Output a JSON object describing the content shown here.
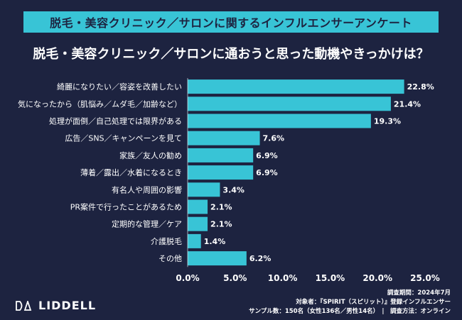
{
  "header": {
    "banner_title": "脱毛・美容クリニック／サロンに関するインフルエンサーアンケート",
    "question": "脱毛・美容クリニック／サロンに通おうと思った動機やきっかけは？"
  },
  "colors": {
    "background": "#1d2340",
    "accent": "#38c4d6",
    "bar": "#38c4d6",
    "text": "#ffffff"
  },
  "chart_data": {
    "type": "bar",
    "orientation": "horizontal",
    "categories": [
      "綺麗になりたい／容姿を改善したい",
      "気になったから（肌悩み／ムダ毛／加齢など）",
      "処理が面倒／自己処理では限界がある",
      "広告／SNS／キャンペーンを見て",
      "家族／友人の勧め",
      "薄着／露出／水着になるとき",
      "有名人や周囲の影響",
      "PR案件で行ったことがあるため",
      "定期的な管理／ケア",
      "介護脱毛",
      "その他"
    ],
    "values": [
      22.8,
      21.4,
      19.3,
      7.6,
      6.9,
      6.9,
      3.4,
      2.1,
      2.1,
      1.4,
      6.2
    ],
    "value_labels": [
      "22.8%",
      "21.4%",
      "19.3%",
      "7.6%",
      "6.9%",
      "6.9%",
      "3.4%",
      "2.1%",
      "2.1%",
      "1.4%",
      "6.2%"
    ],
    "x_ticks": [
      0,
      5,
      10,
      15,
      20,
      25
    ],
    "x_tick_labels": [
      "0.0%",
      "5.0%",
      "10.0%",
      "15.0%",
      "20.0%",
      "25.0%"
    ],
    "xlim": [
      0,
      25
    ],
    "grid": false,
    "legend": "none"
  },
  "footer": {
    "brand": "LIDDELL",
    "survey_period": "調査期間：2024年7月",
    "target": "対象者：『SPIRIT（スピリット）』登録インフルエンサー",
    "sample": "サンプル数：150名（女性136名／男性14名）　|　調査方法：オンライン"
  }
}
